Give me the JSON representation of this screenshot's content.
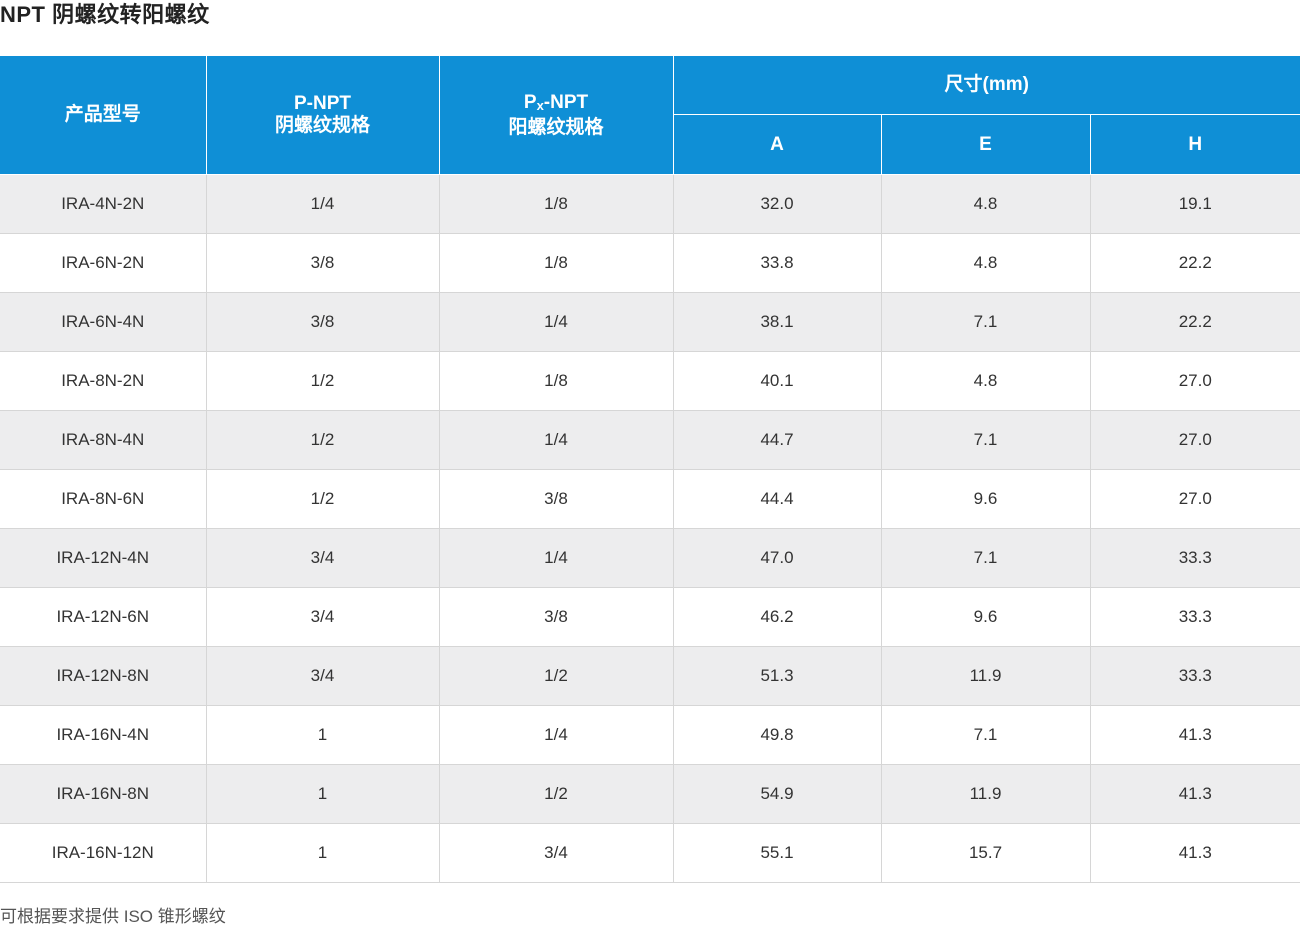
{
  "title": "NPT  阴螺纹转阳螺纹",
  "header": {
    "model": "产品型号",
    "p_npt_line1": "P-NPT",
    "p_npt_line2": "阴螺纹规格",
    "px_npt_main": "P",
    "px_npt_sub": "x",
    "px_npt_rest": "-NPT",
    "px_npt_line2": "阳螺纹规格",
    "dimensions": "尺寸(mm)",
    "col_a": "A",
    "col_e": "E",
    "col_h": "H"
  },
  "rows": [
    {
      "model": "IRA-4N-2N",
      "p": "1/4",
      "px": "1/8",
      "a": "32.0",
      "e": "4.8",
      "h": "19.1"
    },
    {
      "model": "IRA-6N-2N",
      "p": "3/8",
      "px": "1/8",
      "a": "33.8",
      "e": "4.8",
      "h": "22.2"
    },
    {
      "model": "IRA-6N-4N",
      "p": "3/8",
      "px": "1/4",
      "a": "38.1",
      "e": "7.1",
      "h": "22.2"
    },
    {
      "model": "IRA-8N-2N",
      "p": "1/2",
      "px": "1/8",
      "a": "40.1",
      "e": "4.8",
      "h": "27.0"
    },
    {
      "model": "IRA-8N-4N",
      "p": "1/2",
      "px": "1/4",
      "a": "44.7",
      "e": "7.1",
      "h": "27.0"
    },
    {
      "model": "IRA-8N-6N",
      "p": "1/2",
      "px": "3/8",
      "a": "44.4",
      "e": "9.6",
      "h": "27.0"
    },
    {
      "model": "IRA-12N-4N",
      "p": "3/4",
      "px": "1/4",
      "a": "47.0",
      "e": "7.1",
      "h": "33.3"
    },
    {
      "model": "IRA-12N-6N",
      "p": "3/4",
      "px": "3/8",
      "a": "46.2",
      "e": "9.6",
      "h": "33.3"
    },
    {
      "model": "IRA-12N-8N",
      "p": "3/4",
      "px": "1/2",
      "a": "51.3",
      "e": "11.9",
      "h": "33.3"
    },
    {
      "model": "IRA-16N-4N",
      "p": "1",
      "px": "1/4",
      "a": "49.8",
      "e": "7.1",
      "h": "41.3"
    },
    {
      "model": "IRA-16N-8N",
      "p": "1",
      "px": "1/2",
      "a": "54.9",
      "e": "11.9",
      "h": "41.3"
    },
    {
      "model": "IRA-16N-12N",
      "p": "1",
      "px": "3/4",
      "a": "55.1",
      "e": "15.7",
      "h": "41.3"
    }
  ],
  "footnote": "可根据要求提供 ISO 锥形螺纹",
  "colors": {
    "header_bg": "#0f8fd6",
    "stripe_bg": "#ededee"
  }
}
